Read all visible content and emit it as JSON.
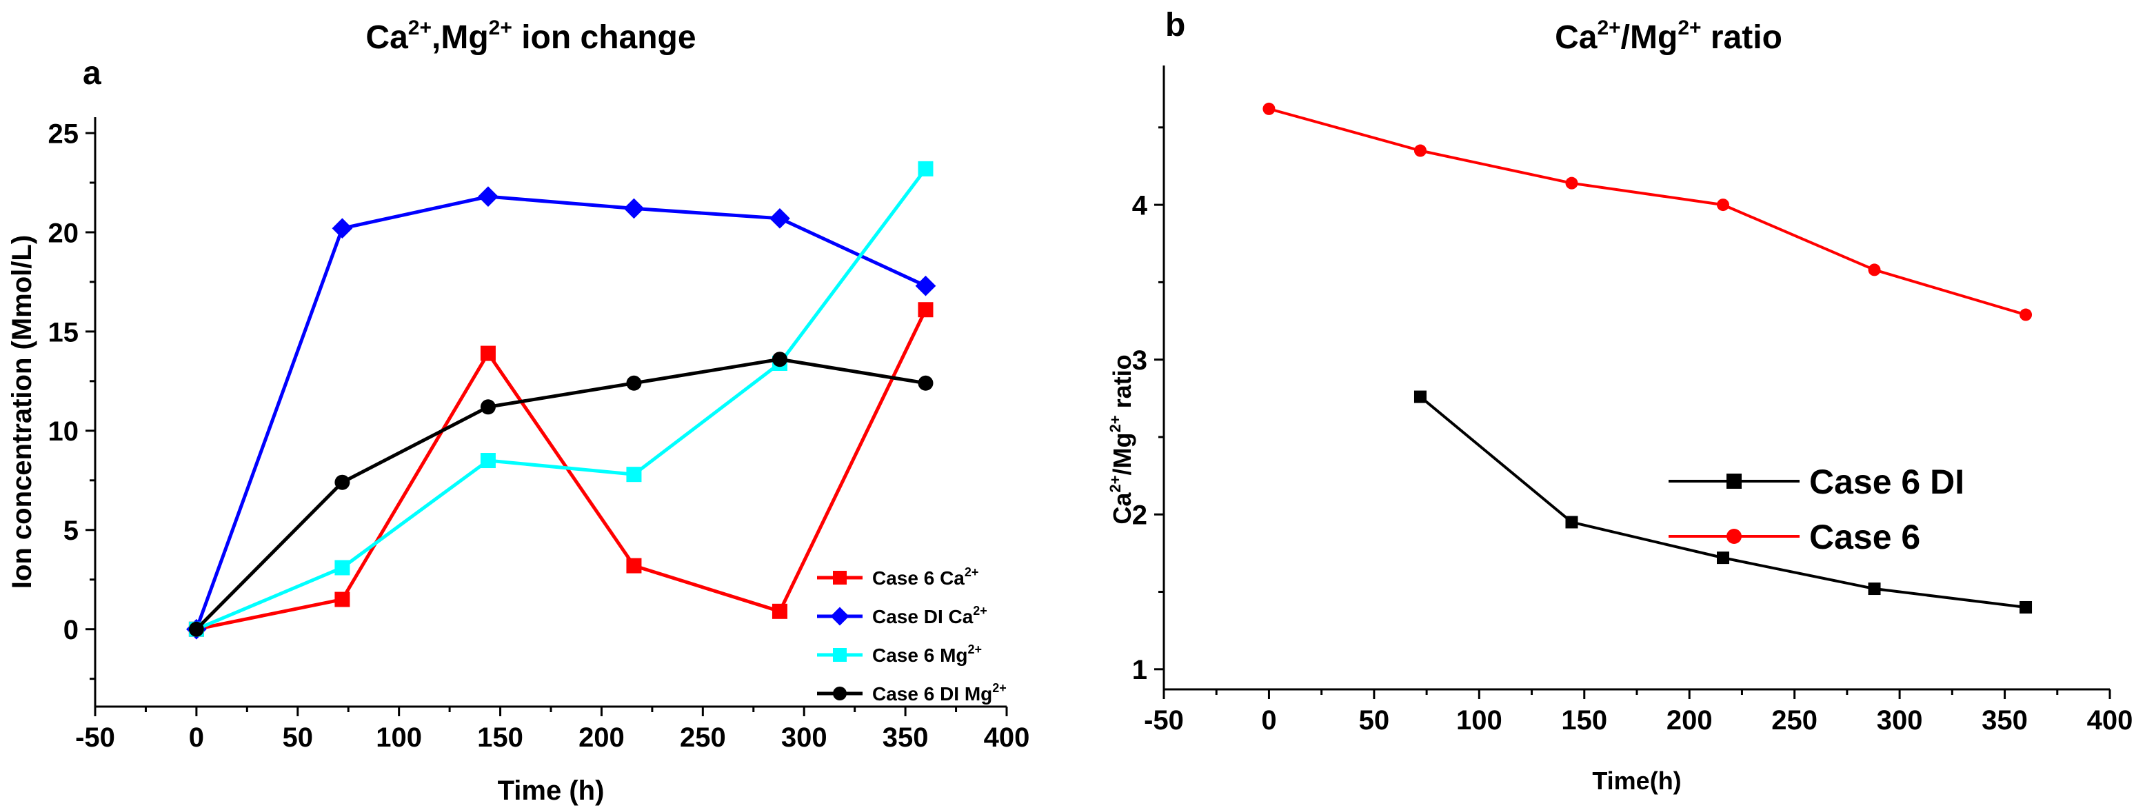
{
  "chart_data": [
    {
      "type": "line",
      "panel_label": "a",
      "title": {
        "base1": "Ca",
        "sup1": "2+",
        "mid": ",Mg",
        "sup2": "2+",
        "tail": " ion  change"
      },
      "xlabel": "Time (h)",
      "ylabel": "Ion concentration (Mmol/L)",
      "xlim": [
        -50,
        400
      ],
      "ylim": [
        -3.9,
        25.8
      ],
      "xticks": [
        -50,
        0,
        50,
        100,
        150,
        200,
        250,
        300,
        350,
        400
      ],
      "yticks": [
        0,
        5,
        10,
        15,
        20,
        25
      ],
      "legend_position": "bottom-right",
      "series": [
        {
          "name": "Case 6 Ca",
          "sup": "2+",
          "color": "#ff0000",
          "marker": "square",
          "x": [
            0,
            72,
            144,
            216,
            288,
            360
          ],
          "values": [
            0,
            1.5,
            13.9,
            3.2,
            0.9,
            16.1
          ]
        },
        {
          "name": "Case DI Ca",
          "sup": "2+",
          "color": "#0000ff",
          "marker": "diamond",
          "x": [
            0,
            72,
            144,
            216,
            288,
            360
          ],
          "values": [
            0,
            20.2,
            21.8,
            21.2,
            20.7,
            17.3
          ]
        },
        {
          "name": "Case 6 Mg",
          "sup": "2+",
          "color": "#00ffff",
          "marker": "square",
          "x": [
            0,
            72,
            144,
            216,
            288,
            360
          ],
          "values": [
            0,
            3.1,
            8.5,
            7.8,
            13.4,
            23.2
          ]
        },
        {
          "name": "Case 6 DI Mg",
          "sup": "2+",
          "color": "#000000",
          "marker": "circle",
          "x": [
            0,
            72,
            144,
            216,
            288,
            360
          ],
          "values": [
            0,
            7.4,
            11.2,
            12.4,
            13.6,
            12.4
          ]
        }
      ]
    },
    {
      "type": "line",
      "panel_label": "b",
      "title": {
        "base1": "Ca",
        "sup1": "2+",
        "mid": "/Mg",
        "sup2": "2+",
        "tail": " ratio"
      },
      "xlabel": "Time(h)",
      "ylabel": {
        "base1": "Ca",
        "sup1": "2+",
        "mid": "/Mg",
        "sup2": "2+",
        "tail": " ratio"
      },
      "xlim": [
        -50,
        400
      ],
      "ylim": [
        0.87,
        4.9
      ],
      "xticks": [
        -50,
        0,
        50,
        100,
        150,
        200,
        250,
        300,
        350,
        400
      ],
      "yticks": [
        1,
        2,
        3,
        4
      ],
      "legend_position": "middle-right",
      "series": [
        {
          "name": "Case 6 DI",
          "color": "#000000",
          "marker": "square",
          "x": [
            72,
            144,
            216,
            288,
            360
          ],
          "values": [
            2.76,
            1.95,
            1.72,
            1.52,
            1.4
          ]
        },
        {
          "name": "Case 6",
          "color": "#ff0000",
          "marker": "circle",
          "x": [
            0,
            72,
            144,
            216,
            288,
            360
          ],
          "values": [
            4.62,
            4.35,
            4.14,
            4.0,
            3.58,
            3.29
          ]
        }
      ]
    }
  ]
}
